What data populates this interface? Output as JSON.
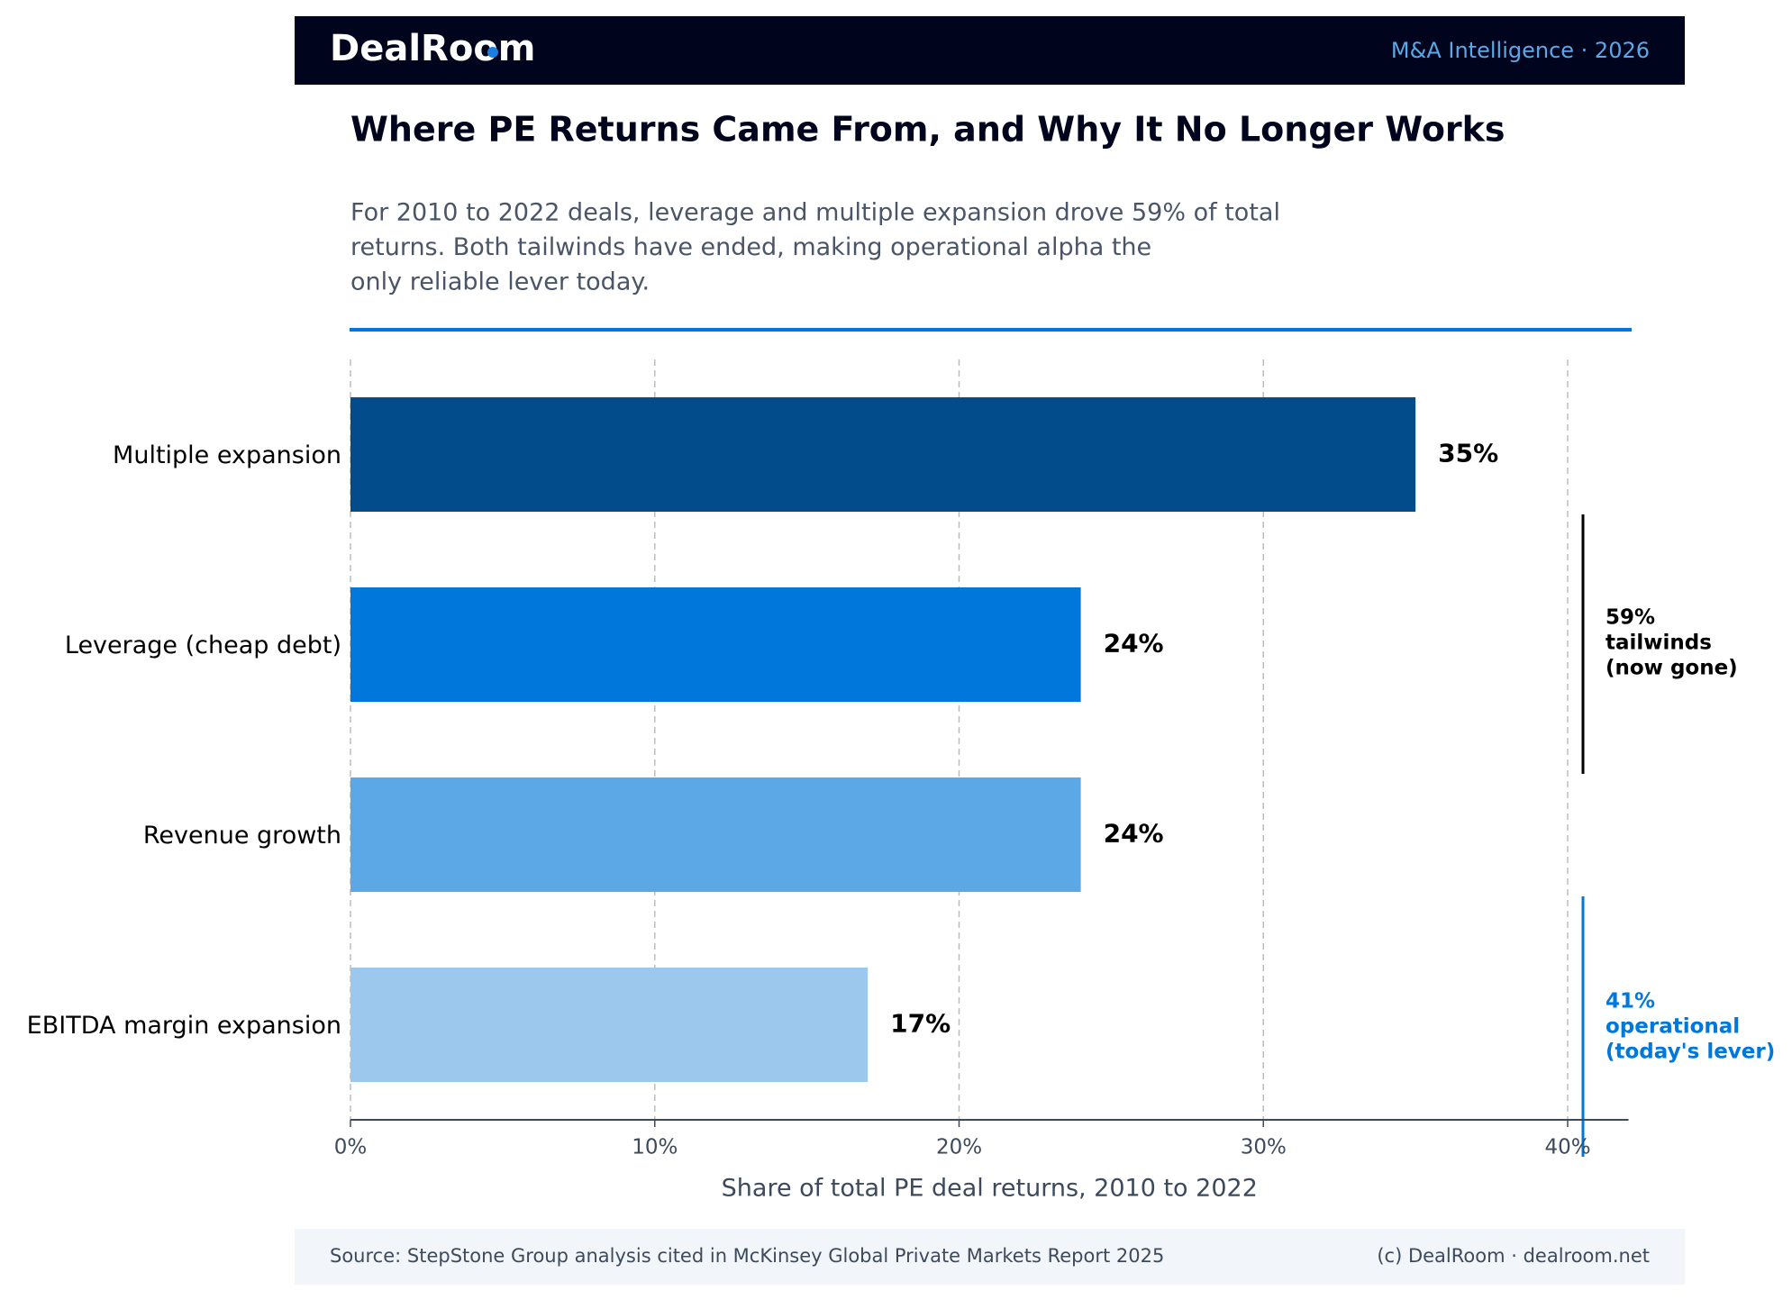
{
  "header": {
    "brand": "DealRoom",
    "tagline": "M&A Intelligence  ·  2026"
  },
  "chart_data": {
    "type": "bar",
    "orientation": "horizontal",
    "title": "Where PE Returns Came From, and Why It No Longer Works",
    "subtitle": [
      "For 2010 to 2022 deals, leverage and multiple expansion drove 59% of total",
      "returns. Both tailwinds have ended, making operational alpha the",
      "only reliable lever today."
    ],
    "categories": [
      "Multiple expansion",
      "Leverage (cheap debt)",
      "Revenue growth",
      "EBITDA margin expansion"
    ],
    "values": [
      35,
      24,
      24,
      17
    ],
    "value_labels": [
      "35%",
      "24%",
      "24%",
      "17%"
    ],
    "colors": [
      "#034c8c",
      "#0077db",
      "#5ca8e6",
      "#9dc8ed"
    ],
    "xlim": [
      0,
      42
    ],
    "xticks": [
      {
        "value": 0,
        "label": "0%"
      },
      {
        "value": 10,
        "label": "10%"
      },
      {
        "value": 20,
        "label": "20%"
      },
      {
        "value": 30,
        "label": "30%"
      },
      {
        "value": 40,
        "label": "40%"
      }
    ],
    "x_label": "Share of total PE deal returns, 2010 to 2022",
    "grid": true,
    "annotations": [
      {
        "lines": [
          "59%",
          "tailwinds",
          "(now gone)"
        ],
        "color": "#000000"
      },
      {
        "lines": [
          "41%",
          "operational",
          "(today's lever)"
        ],
        "color": "#0077db"
      }
    ]
  },
  "footer": {
    "source": "Source: StepStone Group analysis cited in McKinsey Global Private Markets Report 2025",
    "credit": "(c) DealRoom  ·  dealroom.net"
  }
}
